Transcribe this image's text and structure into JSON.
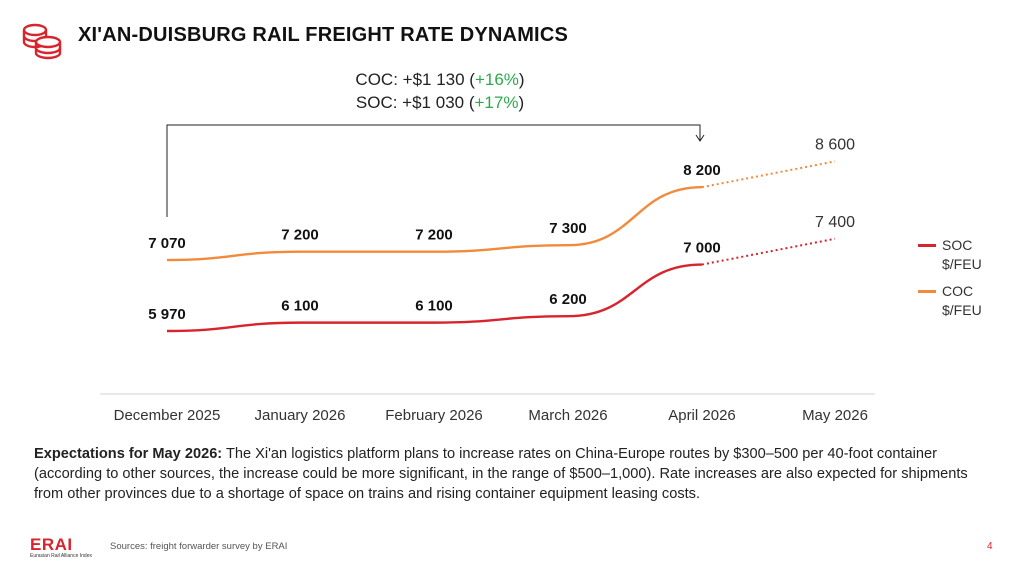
{
  "header": {
    "title": "XI'AN-DUISBURG RAIL FREIGHT RATE DYNAMICS",
    "icon": "coins-icon"
  },
  "annotation": {
    "coc_prefix": "COC: +$1 130 (",
    "coc_pct": "+16%",
    "soc_prefix": "SOC: +$1 030 (",
    "soc_pct": "+17%",
    "close": ")"
  },
  "colors": {
    "soc": "#d7242d",
    "coc": "#f28a3c",
    "positive": "#2fa84f"
  },
  "chart_data": {
    "type": "line",
    "categories": [
      "December 2025",
      "January 2026",
      "February 2026",
      "March 2026",
      "April 2026",
      "May 2026"
    ],
    "series": [
      {
        "name": "SOC\n$/FEU",
        "values": [
          5970,
          6100,
          6100,
          6200,
          7000,
          7400
        ],
        "labels": [
          "5 970",
          "6 100",
          "6 100",
          "6 200",
          "7 000",
          "7 400"
        ],
        "forecast_from_index": 4
      },
      {
        "name": "COC\n$/FEU",
        "values": [
          7070,
          7200,
          7200,
          7300,
          8200,
          8600
        ],
        "labels": [
          "7 070",
          "7 200",
          "7 200",
          "7 300",
          "8 200",
          "8 600"
        ],
        "forecast_from_index": 4
      }
    ],
    "legend": "right",
    "grid": false
  },
  "legend": {
    "soc_line1": "SOC",
    "soc_line2": "$/FEU",
    "coc_line1": "COC",
    "coc_line2": "$/FEU"
  },
  "note": {
    "lead": "Expectations for May 2026:",
    "body": " The Xi'an logistics platform plans to increase rates on China-Europe routes by $300–500 per 40-foot container (according to other sources, the increase could be more significant, in the range of $500–1,000). Rate increases are also expected for shipments from other provinces due to a shortage of space on trains and rising container equipment leasing costs."
  },
  "footer": {
    "logo": "ERAI",
    "logo_sub": "Eurasian Rail Alliance Index",
    "source": "Sources: freight forwarder survey by ERAI",
    "page": "4"
  }
}
